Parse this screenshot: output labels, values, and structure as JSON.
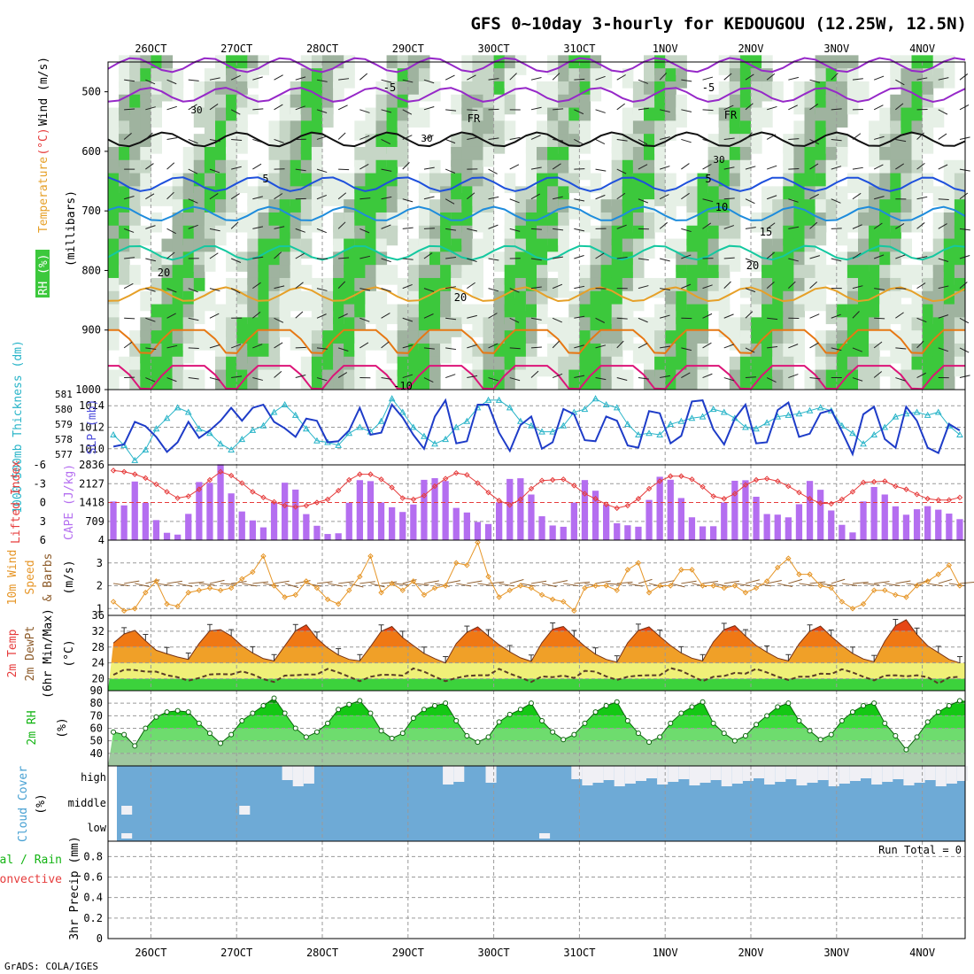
{
  "title": "GFS 0~10day 3-hourly for KEDOUGOU (12.25W, 12.5N)",
  "footer": "GrADS: COLA/IGES",
  "colors": {
    "rh_green": "#3cc83c",
    "rh_light": "#e6f0e6",
    "rh_mid": "#c6d6c6",
    "rh_dark": "#9fb39f",
    "slp": "#1e3cc8",
    "thickness": "#28b4c8",
    "cape": "#b46ef0",
    "lifted": "#e63c3c",
    "wind10": "#e69628",
    "barb": "#8c5a28",
    "cloud": "#6eaad6",
    "cloud_clear": "#f0f0f5",
    "rh2m": "#14c814",
    "temp_hot": "#e64614",
    "temp_warm": "#f0a028",
    "temp_mild": "#f5d26e",
    "temp_cool": "#f0f078",
    "temp_cold": "#3cd23c"
  },
  "chart_data": {
    "type": "meteogram",
    "dates": [
      "26OCT",
      "27OCT",
      "28OCT",
      "29OCT",
      "30OCT",
      "31OCT",
      "1NOV",
      "2NOV",
      "3NOV",
      "4NOV"
    ],
    "n_steps": 80,
    "upper_air": {
      "ylabel_parts": [
        "RH (%)",
        "Temperature",
        "(°C)",
        "Wind (m/s)"
      ],
      "ylabel_units": "(millibars)",
      "yticks": [
        "500",
        "600",
        "700",
        "800",
        "900",
        "1000"
      ],
      "ylim": [
        1000,
        450
      ],
      "contour_labels": [
        "-10",
        "-5",
        "-5",
        "FR",
        "FR",
        "5",
        "5",
        "10",
        "15",
        "20",
        "20",
        "20",
        "30",
        "30",
        "30"
      ],
      "isotherm_levels_mb": {
        "-10": 455,
        "-5": 505,
        "0": 580,
        "5": 655,
        "10": 705,
        "15": 770,
        "20": 840,
        "25": 900,
        "30": 960
      }
    },
    "slp_thickness": {
      "ylabel_thickness": "1000-500mb Thickness (dm)",
      "ylabel_slp": "SLP (mb)",
      "thickness_ticks": [
        "581",
        "580",
        "579",
        "578",
        "577"
      ],
      "slp_ticks": [
        "1014",
        "1012",
        "1010"
      ],
      "slp_range": [
        1008.5,
        1015.5
      ],
      "thickness_range": [
        576.3,
        581.3
      ],
      "slp": [
        1010.2,
        1010.4,
        1012.5,
        1012.1,
        1011.1,
        1009.7,
        1010.6,
        1012.5,
        1011.0,
        1011.7,
        1012.6,
        1013.8,
        1012.6,
        1013.8,
        1014.1,
        1012.5,
        1011.9,
        1011.1,
        1012.8,
        1012.6,
        1010.6,
        1010.7,
        1011.7,
        1013.8,
        1011.3,
        1011.5,
        1014.1,
        1012.9,
        1011.3,
        1010.0,
        1013.0,
        1014.5,
        1010.5,
        1010.7,
        1014.1,
        1014.1,
        1011.5,
        1009.8,
        1012.2,
        1013.0,
        1010.0,
        1010.6,
        1013.7,
        1013.2,
        1010.8,
        1010.7,
        1013.0,
        1012.6,
        1010.3,
        1010.1,
        1013.5,
        1013.3,
        1010.5,
        1011.2,
        1014.4,
        1014.5,
        1011.8,
        1010.4,
        1012.8,
        1014.1,
        1010.5,
        1010.6,
        1013.6,
        1014.3,
        1011.1,
        1011.4,
        1013.3,
        1013.6,
        1011.6,
        1009.5,
        1013.2,
        1013.9,
        1010.9,
        1010.1,
        1013.9,
        1012.6,
        1010.1,
        1009.6,
        1012.3,
        1011.7
      ],
      "thickness": [
        578.3,
        577.6,
        576.6,
        577.3,
        578.7,
        579.4,
        580.1,
        579.8,
        578.7,
        578.4,
        577.7,
        577.3,
        578.0,
        578.6,
        578.9,
        579.8,
        580.3,
        579.6,
        578.7,
        577.9,
        577.8,
        577.6,
        578.4,
        578.8,
        578.5,
        579.2,
        580.7,
        579.8,
        578.8,
        578.2,
        577.7,
        578.0,
        578.8,
        579.2,
        580.1,
        580.6,
        580.6,
        580.1,
        579.2,
        578.9,
        578.5,
        578.5,
        578.9,
        579.8,
        580.0,
        580.7,
        580.3,
        580.1,
        579.0,
        578.3,
        578.4,
        578.3,
        579.0,
        579.2,
        579.4,
        579.5,
        580.0,
        579.8,
        579.4,
        578.8,
        578.7,
        579.1,
        579.5,
        579.6,
        579.7,
        579.9,
        580.1,
        579.9,
        578.9,
        578.4,
        577.7,
        578.3,
        578.8,
        579.5,
        579.7,
        579.8,
        579.6,
        579.8,
        578.9,
        578.3
      ]
    },
    "cape_li": {
      "ylabel_li": "Lifted Index",
      "ylabel_cape": "CAPE (J/kg)",
      "li_ticks": [
        "-6",
        "-3",
        "0",
        "3",
        "6"
      ],
      "cape_ticks": [
        "2836",
        "2127",
        "1418",
        "709",
        "4"
      ],
      "cape_range": [
        4,
        2836
      ],
      "li_range": [
        -6,
        6
      ],
      "cape": [
        1458,
        1312,
        2209,
        1408,
        758,
        280,
        212,
        992,
        2189,
        2162,
        2859,
        1763,
        1082,
        746,
        484,
        1412,
        2165,
        1906,
        983,
        544,
        235,
        262,
        1409,
        2261,
        2224,
        1422,
        1241,
        1063,
        1345,
        2273,
        2335,
        2228,
        1216,
        1044,
        687,
        611,
        1427,
        2307,
        2332,
        1720,
        902,
        555,
        506,
        1418,
        2264,
        1863,
        1340,
        638,
        563,
        509,
        1516,
        2388,
        2275,
        1588,
        863,
        522,
        527,
        1421,
        2238,
        2257,
        1637,
        986,
        963,
        862,
        1355,
        2231,
        1899,
        1120,
        579,
        294,
        1460,
        2004,
        1721,
        1276,
        960,
        1166,
        1281,
        1150,
        1002,
        794
      ],
      "lifted_index": [
        -5.1,
        -4.9,
        -4.5,
        -3.9,
        -2.9,
        -1.7,
        -0.7,
        -1.0,
        -2.1,
        -3.6,
        -4.9,
        -4.3,
        -3.1,
        -1.7,
        -0.8,
        -0.1,
        0.5,
        0.7,
        0.5,
        0.0,
        -0.5,
        -1.9,
        -3.6,
        -4.5,
        -4.5,
        -3.7,
        -2.4,
        -0.7,
        -0.5,
        -1.1,
        -2.6,
        -3.8,
        -4.7,
        -4.4,
        -3.1,
        -1.6,
        -0.3,
        0.4,
        -0.5,
        -2.2,
        -3.5,
        -3.6,
        -3.7,
        -2.7,
        -1.4,
        -0.6,
        0.3,
        0.9,
        0.5,
        -0.6,
        -2.2,
        -3.4,
        -4.2,
        -4.2,
        -3.7,
        -2.5,
        -1.0,
        -0.6,
        -1.4,
        -2.8,
        -3.6,
        -3.8,
        -3.4,
        -2.6,
        -1.6,
        -0.6,
        0.1,
        0.2,
        -0.5,
        -1.7,
        -3.2,
        -3.3,
        -3.4,
        -2.6,
        -2.1,
        -1.3,
        -0.6,
        -0.4,
        -0.4,
        -0.8
      ]
    },
    "wind10": {
      "ylabel_parts": [
        "10m Wind",
        "Speed",
        "& Barbs"
      ],
      "ylabel_units": "(m/s)",
      "yticks": [
        "3",
        "2",
        "1"
      ],
      "yrange": [
        0.7,
        4.0
      ],
      "speed": [
        1.3,
        0.9,
        1.0,
        1.7,
        2.2,
        1.2,
        1.1,
        1.7,
        1.8,
        1.9,
        1.8,
        1.9,
        2.3,
        2.6,
        3.3,
        2.0,
        1.5,
        1.6,
        2.2,
        1.9,
        1.4,
        1.2,
        1.8,
        2.4,
        3.3,
        1.7,
        2.1,
        1.8,
        2.2,
        1.6,
        1.9,
        2.0,
        3.0,
        2.9,
        3.9,
        2.4,
        1.5,
        1.8,
        2.0,
        1.9,
        1.6,
        1.4,
        1.3,
        0.9,
        1.9,
        2.0,
        2.0,
        1.8,
        2.7,
        3.0,
        1.7,
        2.0,
        2.0,
        2.7,
        2.7,
        2.0,
        2.0,
        1.9,
        2.0,
        1.7,
        1.9,
        2.2,
        2.8,
        3.2,
        2.5,
        2.5,
        2.0,
        1.9,
        1.3,
        1.0,
        1.2,
        1.8,
        1.8,
        1.6,
        1.5,
        2.0,
        2.2,
        2.5,
        2.9,
        2.0
      ]
    },
    "temp2m": {
      "ylabel_parts": [
        "2m Temp",
        "2m DewPt",
        "(6hr Min/Max)"
      ],
      "ylabel_units": "(°C)",
      "yticks": [
        "36",
        "32",
        "28",
        "24",
        "20"
      ],
      "yrange": [
        17,
        36
      ],
      "temp": [
        29.0,
        31.3,
        32.2,
        29.6,
        27.2,
        26.3,
        25.5,
        24.9,
        28.9,
        32.1,
        32.4,
        30.8,
        28.3,
        26.5,
        25.1,
        24.5,
        28.3,
        32.1,
        33.6,
        30.2,
        27.8,
        26.0,
        24.9,
        24.5,
        28.1,
        32.0,
        33.2,
        30.4,
        28.4,
        26.4,
        25.1,
        24.0,
        28.9,
        31.7,
        33.1,
        30.8,
        28.6,
        26.8,
        25.3,
        24.4,
        29.1,
        32.5,
        33.2,
        30.6,
        28.2,
        26.2,
        24.9,
        24.2,
        29.1,
        32.2,
        33.1,
        30.7,
        28.4,
        26.5,
        25.2,
        24.5,
        29.3,
        32.4,
        33.4,
        30.8,
        28.4,
        26.7,
        25.2,
        24.5,
        28.8,
        32.0,
        33.3,
        30.7,
        28.4,
        26.4,
        25.0,
        24.3,
        29.5,
        33.4,
        34.9,
        31.2,
        28.3,
        26.6,
        24.9,
        24.0
      ],
      "dewpt": [
        21.0,
        22.3,
        22.2,
        21.8,
        21.8,
        20.9,
        20.4,
        19.5,
        20.2,
        21.1,
        21.2,
        21.1,
        21.9,
        21.1,
        19.9,
        19.2,
        20.8,
        20.9,
        21.1,
        21.1,
        22.5,
        21.6,
        20.5,
        19.4,
        20.5,
        21.0,
        21.0,
        20.8,
        22.6,
        21.8,
        20.5,
        19.4,
        20.2,
        20.7,
        20.9,
        20.9,
        22.5,
        21.3,
        20.3,
        19.2,
        20.6,
        20.4,
        20.8,
        20.2,
        22.0,
        21.8,
        20.6,
        19.7,
        20.5,
        20.8,
        20.9,
        20.9,
        22.7,
        22.0,
        20.7,
        19.4,
        20.5,
        20.7,
        21.5,
        21.3,
        22.5,
        21.6,
        20.5,
        19.7,
        20.5,
        20.5,
        21.3,
        21.2,
        22.4,
        21.6,
        20.5,
        19.6,
        20.8,
        20.9,
        20.6,
        20.9,
        20.4,
        18.8,
        20.3,
        20.5
      ]
    },
    "rh2m": {
      "ylabel": "2m RH",
      "ylabel_units": "(%)",
      "yticks": [
        "90",
        "80",
        "70",
        "60",
        "50",
        "40"
      ],
      "yrange": [
        30,
        90
      ],
      "rh": [
        57,
        55,
        46,
        60,
        69,
        73,
        74,
        73,
        64,
        56,
        48,
        55,
        66,
        72,
        78,
        84,
        72,
        60,
        53,
        57,
        64,
        75,
        79,
        82,
        72,
        58,
        52,
        56,
        68,
        75,
        78,
        80,
        66,
        54,
        49,
        53,
        65,
        71,
        75,
        80,
        66,
        57,
        51,
        55,
        64,
        73,
        78,
        81,
        66,
        56,
        49,
        53,
        64,
        72,
        77,
        81,
        64,
        56,
        50,
        54,
        63,
        70,
        77,
        80,
        66,
        58,
        51,
        55,
        66,
        73,
        78,
        80,
        64,
        54,
        43,
        53,
        65,
        73,
        78,
        82
      ]
    },
    "cloud": {
      "ylabel": "Cloud Cover",
      "ylabel_units": "(%)",
      "levels": [
        "high",
        "middle",
        "low"
      ]
    },
    "precip": {
      "ylabel_parts": [
        "Total / Rain",
        "Convective"
      ],
      "ylabel_units": "3hr Precip (mm)",
      "yticks": [
        "0.8",
        "0.6",
        "0.4",
        "0.2",
        "0"
      ],
      "run_total": "Run Total = 0",
      "values": [
        0,
        0,
        0,
        0,
        0,
        0,
        0,
        0,
        0,
        0,
        0,
        0,
        0,
        0,
        0,
        0,
        0,
        0,
        0,
        0,
        0,
        0,
        0,
        0,
        0,
        0,
        0,
        0,
        0,
        0,
        0,
        0,
        0,
        0,
        0,
        0,
        0,
        0,
        0,
        0,
        0,
        0,
        0,
        0,
        0,
        0,
        0,
        0,
        0,
        0,
        0,
        0,
        0,
        0,
        0,
        0,
        0,
        0,
        0,
        0,
        0,
        0,
        0,
        0,
        0,
        0,
        0,
        0,
        0,
        0,
        0,
        0,
        0,
        0,
        0,
        0,
        0,
        0,
        0,
        0
      ]
    }
  }
}
